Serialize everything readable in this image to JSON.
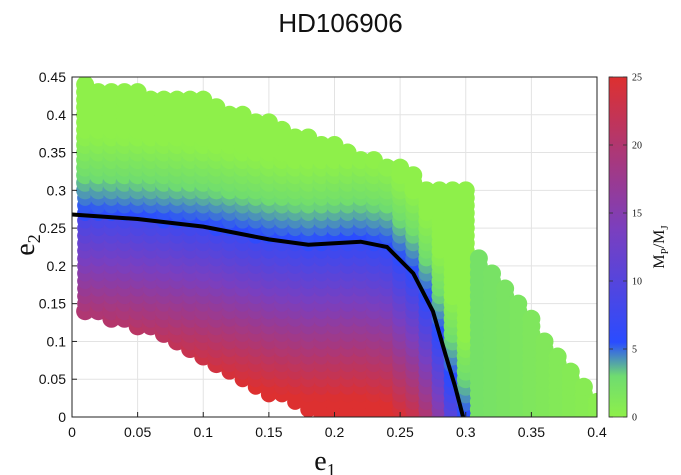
{
  "chart_data": {
    "type": "scatter",
    "title": "HD106906",
    "xlabel": "e",
    "xlabel_sub": "1",
    "ylabel": "e",
    "ylabel_sub": "2",
    "xlim": [
      0,
      0.4
    ],
    "ylim": [
      0,
      0.45
    ],
    "xticks": [
      "0",
      "0.05",
      "0.1",
      "0.15",
      "0.2",
      "0.25",
      "0.3",
      "0.35",
      "0.4"
    ],
    "yticks": [
      "0",
      "0.05",
      "0.1",
      "0.15",
      "0.2",
      "0.25",
      "0.3",
      "0.35",
      "0.4",
      "0.45"
    ],
    "grid": true,
    "colorbar": {
      "label": "M",
      "label_sub1": "P",
      "label_mid": "/M",
      "label_sub2": "J",
      "range": [
        0,
        25
      ],
      "ticks": [
        "0",
        "5",
        "10",
        "15",
        "20",
        "25"
      ],
      "colors": [
        "#8ef04a",
        "#2a4cff",
        "#7a3fbf",
        "#dd3030"
      ]
    },
    "region": {
      "cutoff_x": 0.3,
      "inner_max_y": 0.29,
      "upper_boundary": [
        [
          0.01,
          0.44
        ],
        [
          0.1,
          0.42
        ],
        [
          0.15,
          0.39
        ],
        [
          0.2,
          0.36
        ],
        [
          0.25,
          0.33
        ],
        [
          0.29,
          0.3
        ]
      ],
      "lower_boundary": [
        [
          0.01,
          0.14
        ],
        [
          0.05,
          0.12
        ],
        [
          0.1,
          0.08
        ],
        [
          0.15,
          0.03
        ],
        [
          0.18,
          0.005
        ]
      ],
      "outer_upper": [
        [
          0.3,
          0.23
        ],
        [
          0.35,
          0.13
        ],
        [
          0.4,
          0.025
        ]
      ],
      "outer_lower": [
        [
          0.3,
          0.0
        ],
        [
          0.4,
          0.0
        ]
      ]
    },
    "curve": {
      "color": "#000000",
      "points": [
        [
          0,
          0.268
        ],
        [
          0.05,
          0.262
        ],
        [
          0.1,
          0.252
        ],
        [
          0.15,
          0.235
        ],
        [
          0.18,
          0.228
        ],
        [
          0.2,
          0.23
        ],
        [
          0.22,
          0.232
        ],
        [
          0.24,
          0.225
        ],
        [
          0.26,
          0.19
        ],
        [
          0.275,
          0.14
        ],
        [
          0.285,
          0.08
        ],
        [
          0.292,
          0.04
        ],
        [
          0.298,
          0.0
        ]
      ]
    }
  }
}
